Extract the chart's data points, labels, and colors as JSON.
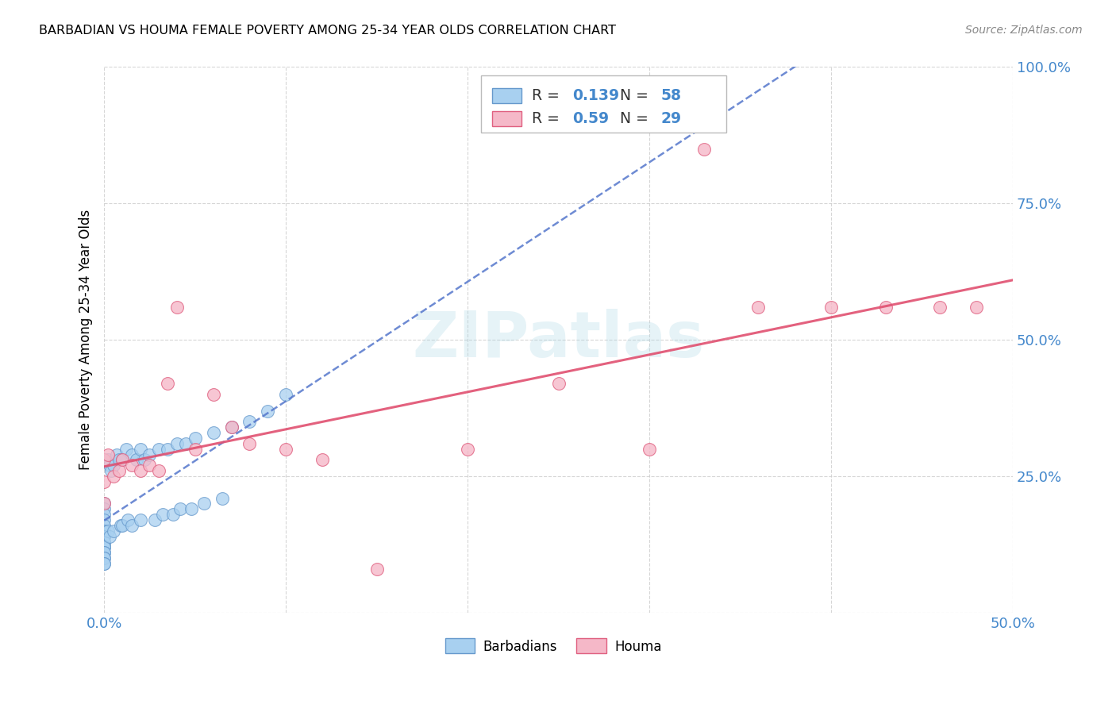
{
  "title": "BARBADIAN VS HOUMA FEMALE POVERTY AMONG 25-34 YEAR OLDS CORRELATION CHART",
  "source": "Source: ZipAtlas.com",
  "ylabel": "Female Poverty Among 25-34 Year Olds",
  "xlim": [
    0.0,
    0.5
  ],
  "ylim": [
    0.0,
    1.0
  ],
  "barbadian_color": "#a8d0f0",
  "barbadian_edge_color": "#6699cc",
  "houma_color": "#f5b8c8",
  "houma_edge_color": "#e06080",
  "barbadian_line_color": "#5577cc",
  "houma_line_color": "#e05070",
  "R_barbadian": 0.139,
  "N_barbadian": 58,
  "R_houma": 0.59,
  "N_houma": 29,
  "watermark": "ZIPatlas",
  "background_color": "#ffffff",
  "grid_color": "#cccccc",
  "tick_color": "#4488cc",
  "barbadian_x": [
    0.0,
    0.0,
    0.0,
    0.0,
    0.0,
    0.0,
    0.0,
    0.0,
    0.0,
    0.0,
    0.0,
    0.0,
    0.0,
    0.0,
    0.0,
    0.0,
    0.0,
    0.0,
    0.0,
    0.0,
    0.002,
    0.002,
    0.003,
    0.003,
    0.004,
    0.005,
    0.005,
    0.007,
    0.008,
    0.009,
    0.01,
    0.01,
    0.012,
    0.013,
    0.015,
    0.015,
    0.018,
    0.02,
    0.02,
    0.022,
    0.025,
    0.028,
    0.03,
    0.032,
    0.035,
    0.038,
    0.04,
    0.042,
    0.045,
    0.048,
    0.05,
    0.055,
    0.06,
    0.065,
    0.07,
    0.08,
    0.09,
    0.1
  ],
  "barbadian_y": [
    0.2,
    0.19,
    0.18,
    0.17,
    0.16,
    0.15,
    0.15,
    0.14,
    0.14,
    0.13,
    0.13,
    0.12,
    0.12,
    0.12,
    0.11,
    0.11,
    0.1,
    0.1,
    0.09,
    0.09,
    0.28,
    0.15,
    0.27,
    0.14,
    0.26,
    0.27,
    0.15,
    0.29,
    0.28,
    0.16,
    0.28,
    0.16,
    0.3,
    0.17,
    0.29,
    0.16,
    0.28,
    0.3,
    0.17,
    0.28,
    0.29,
    0.17,
    0.3,
    0.18,
    0.3,
    0.18,
    0.31,
    0.19,
    0.31,
    0.19,
    0.32,
    0.2,
    0.33,
    0.21,
    0.34,
    0.35,
    0.37,
    0.4
  ],
  "houma_x": [
    0.0,
    0.0,
    0.0,
    0.002,
    0.005,
    0.008,
    0.01,
    0.015,
    0.02,
    0.025,
    0.03,
    0.035,
    0.04,
    0.05,
    0.06,
    0.07,
    0.08,
    0.1,
    0.12,
    0.15,
    0.2,
    0.25,
    0.3,
    0.33,
    0.36,
    0.4,
    0.43,
    0.46,
    0.48
  ],
  "houma_y": [
    0.28,
    0.24,
    0.2,
    0.29,
    0.25,
    0.26,
    0.28,
    0.27,
    0.26,
    0.27,
    0.26,
    0.42,
    0.56,
    0.3,
    0.4,
    0.34,
    0.31,
    0.3,
    0.28,
    0.08,
    0.3,
    0.42,
    0.3,
    0.85,
    0.56,
    0.56,
    0.56,
    0.56,
    0.56
  ]
}
